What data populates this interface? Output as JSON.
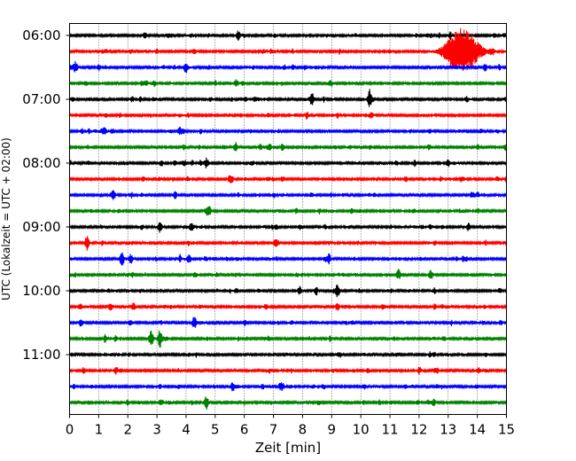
{
  "chart_data": {
    "type": "line",
    "xlabel": "Zeit  [min]",
    "ylabel": "UTC (Lokalzeit = UTC + 02:00)",
    "xlim": [
      0,
      15
    ],
    "x_ticks": [
      0,
      1,
      2,
      3,
      4,
      5,
      6,
      7,
      8,
      9,
      10,
      11,
      12,
      13,
      14,
      15
    ],
    "y_ticks": [
      "06:00",
      "07:00",
      "08:00",
      "09:00",
      "10:00",
      "11:00"
    ],
    "grid": "vertical-dotted",
    "trace_interval_minutes": 15,
    "start_time": "06:00",
    "trace_colors": [
      "#000000",
      "#ff0000",
      "#0000ff",
      "#008000"
    ],
    "traces": [
      {
        "time": "06:00",
        "color": "#000000",
        "events": [
          {
            "t": 5.8,
            "amp": 5
          }
        ]
      },
      {
        "time": "06:15",
        "color": "#ff0000",
        "events": [
          {
            "t": 13.3,
            "amp": 18
          },
          {
            "t": 13.7,
            "amp": 14
          }
        ]
      },
      {
        "time": "06:30",
        "color": "#0000ff",
        "events": [
          {
            "t": 0.2,
            "amp": 6
          },
          {
            "t": 4.0,
            "amp": 6
          }
        ]
      },
      {
        "time": "06:45",
        "color": "#008000",
        "events": []
      },
      {
        "time": "07:00",
        "color": "#000000",
        "events": [
          {
            "t": 8.3,
            "amp": 6
          },
          {
            "t": 10.3,
            "amp": 11
          }
        ]
      },
      {
        "time": "07:15",
        "color": "#ff0000",
        "events": []
      },
      {
        "time": "07:30",
        "color": "#0000ff",
        "events": [
          {
            "t": 1.2,
            "amp": 4
          }
        ]
      },
      {
        "time": "07:45",
        "color": "#008000",
        "events": [
          {
            "t": 5.7,
            "amp": 5
          }
        ]
      },
      {
        "time": "08:00",
        "color": "#000000",
        "events": [
          {
            "t": 4.7,
            "amp": 6
          },
          {
            "t": 13.0,
            "amp": 4
          }
        ]
      },
      {
        "time": "08:15",
        "color": "#ff0000",
        "events": [
          {
            "t": 5.5,
            "amp": 4
          }
        ]
      },
      {
        "time": "08:30",
        "color": "#0000ff",
        "events": [
          {
            "t": 1.5,
            "amp": 5
          }
        ]
      },
      {
        "time": "08:45",
        "color": "#008000",
        "events": [
          {
            "t": 4.8,
            "amp": 5
          }
        ]
      },
      {
        "time": "09:00",
        "color": "#000000",
        "events": [
          {
            "t": 3.1,
            "amp": 6
          },
          {
            "t": 13.7,
            "amp": 4
          }
        ]
      },
      {
        "time": "09:15",
        "color": "#ff0000",
        "events": [
          {
            "t": 0.6,
            "amp": 9
          }
        ]
      },
      {
        "time": "09:30",
        "color": "#0000ff",
        "events": [
          {
            "t": 1.8,
            "amp": 8
          },
          {
            "t": 2.1,
            "amp": 5
          },
          {
            "t": 4.1,
            "amp": 5
          }
        ]
      },
      {
        "time": "09:45",
        "color": "#008000",
        "events": [
          {
            "t": 11.3,
            "amp": 6
          }
        ]
      },
      {
        "time": "10:00",
        "color": "#000000",
        "events": [
          {
            "t": 7.9,
            "amp": 5
          },
          {
            "t": 9.2,
            "amp": 7
          }
        ]
      },
      {
        "time": "10:15",
        "color": "#ff0000",
        "events": [
          {
            "t": 1.4,
            "amp": 4
          },
          {
            "t": 9.2,
            "amp": 4
          }
        ]
      },
      {
        "time": "10:30",
        "color": "#0000ff",
        "events": [
          {
            "t": 4.3,
            "amp": 7
          }
        ]
      },
      {
        "time": "10:45",
        "color": "#008000",
        "events": [
          {
            "t": 2.8,
            "amp": 9
          },
          {
            "t": 3.1,
            "amp": 10
          }
        ]
      },
      {
        "time": "11:00",
        "color": "#000000",
        "events": []
      },
      {
        "time": "11:15",
        "color": "#ff0000",
        "events": [
          {
            "t": 1.6,
            "amp": 4
          }
        ]
      },
      {
        "time": "11:30",
        "color": "#0000ff",
        "events": [
          {
            "t": 5.6,
            "amp": 5
          },
          {
            "t": 7.3,
            "amp": 4
          }
        ]
      },
      {
        "time": "11:45",
        "color": "#008000",
        "events": [
          {
            "t": 4.7,
            "amp": 8
          },
          {
            "t": 12.5,
            "amp": 4
          }
        ]
      }
    ]
  }
}
